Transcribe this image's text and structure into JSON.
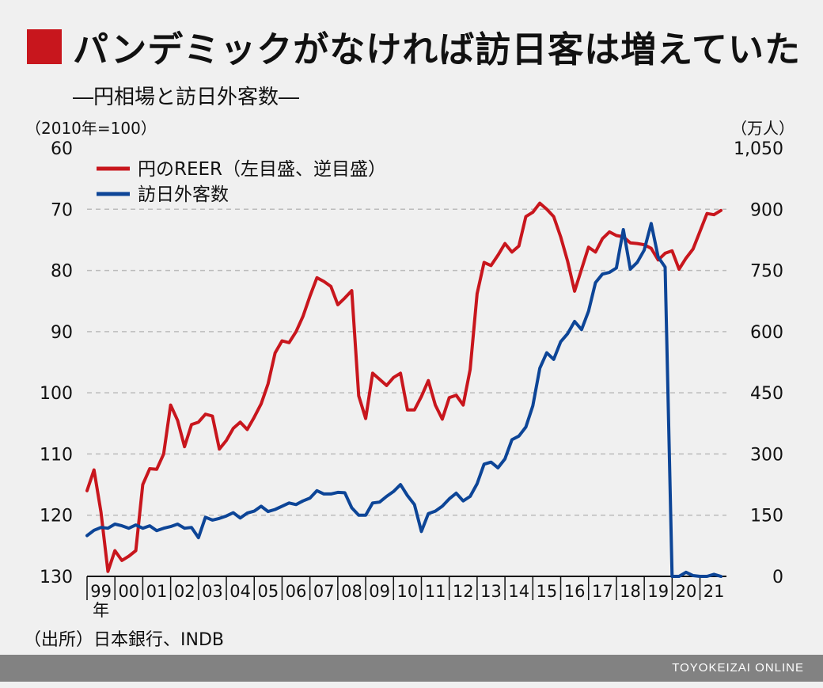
{
  "title": "パンデミックがなければ訪日客は増えていた",
  "subtitle": "―円相場と訪日外客数―",
  "left_unit": "（2010年=100）",
  "right_unit": "（万人）",
  "source": "（出所）日本銀行、INDB",
  "footer": "TOYOKEIZAI ONLINE",
  "colors": {
    "title_square": "#c8161d",
    "reer": "#c8161d",
    "visitors": "#0d4597",
    "grid": "#bbbbbb"
  },
  "chart_data": {
    "type": "line",
    "left_axis": {
      "ticks": [
        "60",
        "70",
        "80",
        "90",
        "100",
        "110",
        "120",
        "130"
      ],
      "values": [
        60,
        70,
        80,
        90,
        100,
        110,
        120,
        130
      ],
      "range": [
        60,
        130
      ],
      "inverted": true
    },
    "right_axis": {
      "ticks": [
        "1,050",
        "900",
        "750",
        "600",
        "450",
        "300",
        "150",
        "0"
      ],
      "values": [
        1050,
        900,
        750,
        600,
        450,
        300,
        150,
        0
      ],
      "range": [
        0,
        1050
      ]
    },
    "x_axis": {
      "labels": [
        "99",
        "00",
        "01",
        "02",
        "03",
        "04",
        "05",
        "06",
        "07",
        "08",
        "09",
        "10",
        "11",
        "12",
        "13",
        "14",
        "15",
        "16",
        "17",
        "18",
        "19",
        "20",
        "21"
      ],
      "sublabel": "年",
      "range": [
        1999,
        2021.95
      ]
    },
    "grid": true,
    "legend_placement": "top-left",
    "series": [
      {
        "name": "円のREER（左目盛、逆目盛）",
        "axis": "left",
        "x": [
          1999.0,
          1999.25,
          1999.5,
          1999.75,
          2000.0,
          2000.25,
          2000.5,
          2000.75,
          2001.0,
          2001.25,
          2001.5,
          2001.75,
          2002.0,
          2002.25,
          2002.5,
          2002.75,
          2003.0,
          2003.25,
          2003.5,
          2003.75,
          2004.0,
          2004.25,
          2004.5,
          2004.75,
          2005.0,
          2005.25,
          2005.5,
          2005.75,
          2006.0,
          2006.25,
          2006.5,
          2006.75,
          2007.0,
          2007.25,
          2007.5,
          2007.75,
          2008.0,
          2008.25,
          2008.5,
          2008.75,
          2009.0,
          2009.25,
          2009.5,
          2009.75,
          2010.0,
          2010.25,
          2010.5,
          2010.75,
          2011.0,
          2011.25,
          2011.5,
          2011.75,
          2012.0,
          2012.25,
          2012.5,
          2012.75,
          2013.0,
          2013.25,
          2013.5,
          2013.75,
          2014.0,
          2014.25,
          2014.5,
          2014.75,
          2015.0,
          2015.25,
          2015.5,
          2015.75,
          2016.0,
          2016.25,
          2016.5,
          2016.75,
          2017.0,
          2017.25,
          2017.5,
          2017.75,
          2018.0,
          2018.25,
          2018.5,
          2018.75,
          2019.0,
          2019.25,
          2019.5,
          2019.75,
          2020.0,
          2020.25,
          2020.5,
          2020.75,
          2021.0,
          2021.25,
          2021.5,
          2021.75
        ],
        "values": [
          116.0,
          112.6,
          119.5,
          129.2,
          125.8,
          127.4,
          126.7,
          125.8,
          115.0,
          112.4,
          112.5,
          110.0,
          102.0,
          104.5,
          108.8,
          105.2,
          104.8,
          103.5,
          103.8,
          109.2,
          107.8,
          105.8,
          104.8,
          106.0,
          104.0,
          101.8,
          98.5,
          93.5,
          91.5,
          91.8,
          90.0,
          87.5,
          84.2,
          81.2,
          81.8,
          82.6,
          85.6,
          84.5,
          83.3,
          100.5,
          104.2,
          96.8,
          97.8,
          98.8,
          97.5,
          96.8,
          102.8,
          102.8,
          100.6,
          98.0,
          102.0,
          104.3,
          100.8,
          100.4,
          102.0,
          96.2,
          83.8,
          78.7,
          79.2,
          77.5,
          75.6,
          77.0,
          76.0,
          71.2,
          70.5,
          69.0,
          70.0,
          71.2,
          74.5,
          78.5,
          83.4,
          79.8,
          76.2,
          77.0,
          74.8,
          73.7,
          74.3,
          74.5,
          75.5,
          75.6,
          75.8,
          76.4,
          78.3,
          77.2,
          76.8,
          79.8,
          78.0,
          76.5,
          73.6,
          70.7,
          70.9,
          70.2
        ]
      },
      {
        "name": "訪日外客数",
        "axis": "right",
        "x": [
          1999.0,
          1999.25,
          1999.5,
          1999.75,
          2000.0,
          2000.25,
          2000.5,
          2000.75,
          2001.0,
          2001.25,
          2001.5,
          2001.75,
          2002.0,
          2002.25,
          2002.5,
          2002.75,
          2003.0,
          2003.25,
          2003.5,
          2003.75,
          2004.0,
          2004.25,
          2004.5,
          2004.75,
          2005.0,
          2005.25,
          2005.5,
          2005.75,
          2006.0,
          2006.25,
          2006.5,
          2006.75,
          2007.0,
          2007.25,
          2007.5,
          2007.75,
          2008.0,
          2008.25,
          2008.5,
          2008.75,
          2009.0,
          2009.25,
          2009.5,
          2009.75,
          2010.0,
          2010.25,
          2010.5,
          2010.75,
          2011.0,
          2011.25,
          2011.5,
          2011.75,
          2012.0,
          2012.25,
          2012.5,
          2012.75,
          2013.0,
          2013.25,
          2013.5,
          2013.75,
          2014.0,
          2014.25,
          2014.5,
          2014.75,
          2015.0,
          2015.25,
          2015.5,
          2015.75,
          2016.0,
          2016.25,
          2016.5,
          2016.75,
          2017.0,
          2017.25,
          2017.5,
          2017.75,
          2018.0,
          2018.25,
          2018.5,
          2018.75,
          2019.0,
          2019.25,
          2019.5,
          2019.75,
          2020.0,
          2020.25,
          2020.5,
          2020.75,
          2021.0,
          2021.25,
          2021.5,
          2021.75
        ],
        "values": [
          100,
          113,
          120,
          118,
          128,
          124,
          118,
          126,
          118,
          124,
          112,
          118,
          122,
          128,
          118,
          120,
          95,
          145,
          138,
          142,
          148,
          156,
          143,
          155,
          160,
          172,
          159,
          164,
          172,
          180,
          176,
          185,
          192,
          210,
          202,
          202,
          206,
          205,
          168,
          150,
          150,
          180,
          182,
          196,
          208,
          225,
          198,
          176,
          110,
          154,
          160,
          172,
          190,
          204,
          185,
          196,
          227,
          275,
          280,
          266,
          288,
          335,
          344,
          366,
          418,
          510,
          548,
          532,
          575,
          595,
          625,
          605,
          650,
          720,
          741,
          745,
          756,
          850,
          753,
          770,
          800,
          865,
          783,
          758,
          0,
          0,
          10,
          2,
          0,
          0,
          5,
          0
        ]
      }
    ]
  }
}
